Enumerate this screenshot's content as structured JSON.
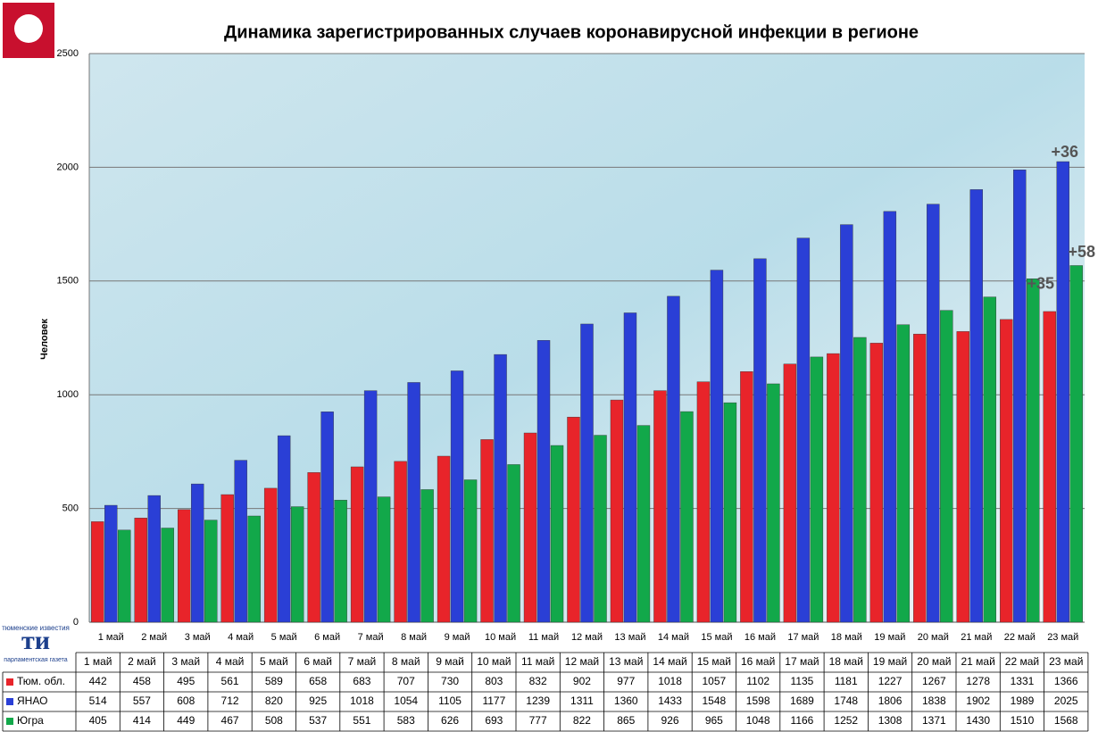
{
  "chart_data": {
    "type": "bar",
    "title": "Динамика зарегистрированных случаев коронавирусной инфекции  в регионе",
    "y_label": "Человек",
    "categories": [
      "1 май",
      "2 май",
      "3 май",
      "4 май",
      "5 май",
      "6 май",
      "7 май",
      "8 май",
      "9 май",
      "10 май",
      "11 май",
      "12 май",
      "13 май",
      "14 май",
      "15 май",
      "16 май",
      "17 май",
      "18 май",
      "19 май",
      "20 май",
      "21 май",
      "22 май",
      "23 май"
    ],
    "series": [
      {
        "name": "Тюм. обл.",
        "color": "#e8242a",
        "values": [
          442,
          458,
          495,
          561,
          589,
          658,
          683,
          707,
          730,
          803,
          832,
          902,
          977,
          1018,
          1057,
          1102,
          1135,
          1181,
          1227,
          1267,
          1278,
          1331,
          1366
        ]
      },
      {
        "name": "ЯНАО",
        "color": "#2a3fd6",
        "values": [
          514,
          557,
          608,
          712,
          820,
          925,
          1018,
          1054,
          1105,
          1177,
          1239,
          1311,
          1360,
          1433,
          1548,
          1598,
          1689,
          1748,
          1806,
          1838,
          1902,
          1989,
          2025
        ]
      },
      {
        "name": "Югра",
        "color": "#12a84a",
        "values": [
          405,
          414,
          449,
          467,
          508,
          537,
          551,
          583,
          626,
          693,
          777,
          822,
          865,
          926,
          965,
          1048,
          1166,
          1252,
          1308,
          1371,
          1430,
          1510,
          1568
        ]
      }
    ],
    "annotations": [
      "+36",
      "+35",
      "+58"
    ],
    "ylim": [
      0,
      2500
    ],
    "yticks": [
      0,
      500,
      1000,
      1500,
      2000,
      2500
    ],
    "grid": true
  },
  "logo": {
    "mark": "ти",
    "top": "тюменские известия",
    "bottom": "парламентская газета"
  }
}
